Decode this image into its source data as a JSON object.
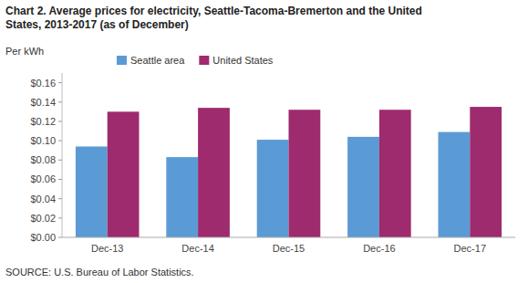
{
  "chart_data": {
    "type": "bar",
    "title": "Chart 2. Average prices for electricity, Seattle-Tacoma-Bremerton and the United\nStates, 2013-2017  (as of December)",
    "ylabel": "Per kWh",
    "source": "SOURCE: U.S. Bureau of Labor Statistics.",
    "categories": [
      "Dec-13",
      "Dec-14",
      "Dec-15",
      "Dec-16",
      "Dec-17"
    ],
    "series": [
      {
        "name": "Seattle area",
        "color": "#5B9BD5",
        "values": [
          0.094,
          0.083,
          0.101,
          0.104,
          0.109
        ]
      },
      {
        "name": "United States",
        "color": "#9E2B6E",
        "values": [
          0.13,
          0.134,
          0.132,
          0.132,
          0.135
        ]
      }
    ],
    "ylim": [
      0,
      0.17
    ],
    "yticks": [
      {
        "value": 0.0,
        "label": "$0.00"
      },
      {
        "value": 0.02,
        "label": "$0.02"
      },
      {
        "value": 0.04,
        "label": "$0.04"
      },
      {
        "value": 0.06,
        "label": "$0.06"
      },
      {
        "value": 0.08,
        "label": "$0.08"
      },
      {
        "value": 0.1,
        "label": "$0.10"
      },
      {
        "value": 0.12,
        "label": "$0.12"
      },
      {
        "value": 0.14,
        "label": "$0.14"
      },
      {
        "value": 0.16,
        "label": "$0.16"
      }
    ],
    "grid": false,
    "legend": "upper left"
  }
}
